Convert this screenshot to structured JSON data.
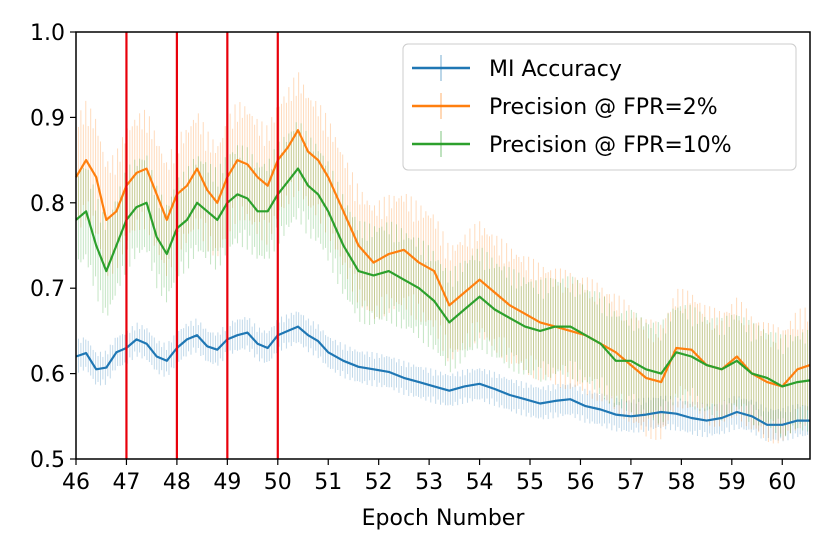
{
  "chart_data": {
    "type": "line",
    "xlabel": "Epoch Number",
    "ylabel": "",
    "xlim": [
      46,
      60.55
    ],
    "ylim": [
      0.5,
      1.0
    ],
    "xticks": [
      "46",
      "47",
      "48",
      "49",
      "50",
      "51",
      "52",
      "53",
      "54",
      "55",
      "56",
      "57",
      "58",
      "59",
      "60"
    ],
    "yticks": [
      "0.5",
      "0.6",
      "0.7",
      "0.8",
      "0.9",
      "1.0"
    ],
    "grid": false,
    "legend_position": "top-right",
    "vertical_markers": [
      47,
      48,
      49,
      50
    ],
    "vertical_marker_color": "#e8000b",
    "series": [
      {
        "name": "MI Accuracy",
        "color": "#1f77b4",
        "band": 0.02,
        "x": [
          46.0,
          46.2,
          46.4,
          46.6,
          46.8,
          47.0,
          47.2,
          47.4,
          47.6,
          47.8,
          48.0,
          48.2,
          48.4,
          48.6,
          48.8,
          49.0,
          49.2,
          49.4,
          49.6,
          49.8,
          50.0,
          50.2,
          50.4,
          50.6,
          50.8,
          51.0,
          51.3,
          51.6,
          51.9,
          52.2,
          52.5,
          52.8,
          53.1,
          53.4,
          53.7,
          54.0,
          54.3,
          54.6,
          54.9,
          55.2,
          55.5,
          55.8,
          56.1,
          56.4,
          56.7,
          57.0,
          57.3,
          57.6,
          57.9,
          58.2,
          58.5,
          58.8,
          59.1,
          59.4,
          59.7,
          60.0,
          60.3,
          60.55
        ],
        "y": [
          0.62,
          0.624,
          0.605,
          0.607,
          0.625,
          0.63,
          0.64,
          0.635,
          0.62,
          0.615,
          0.63,
          0.64,
          0.645,
          0.632,
          0.628,
          0.64,
          0.645,
          0.648,
          0.635,
          0.63,
          0.645,
          0.65,
          0.655,
          0.645,
          0.638,
          0.625,
          0.615,
          0.608,
          0.605,
          0.602,
          0.595,
          0.59,
          0.585,
          0.58,
          0.585,
          0.588,
          0.582,
          0.575,
          0.57,
          0.565,
          0.568,
          0.57,
          0.562,
          0.558,
          0.552,
          0.55,
          0.552,
          0.555,
          0.553,
          0.548,
          0.545,
          0.548,
          0.555,
          0.55,
          0.54,
          0.54,
          0.545,
          0.545
        ]
      },
      {
        "name": "Precision @ FPR=2%",
        "color": "#ff7f0e",
        "band": 0.07,
        "x": [
          46.0,
          46.2,
          46.4,
          46.6,
          46.8,
          47.0,
          47.2,
          47.4,
          47.6,
          47.8,
          48.0,
          48.2,
          48.4,
          48.6,
          48.8,
          49.0,
          49.2,
          49.4,
          49.6,
          49.8,
          50.0,
          50.2,
          50.4,
          50.6,
          50.8,
          51.0,
          51.3,
          51.6,
          51.9,
          52.2,
          52.5,
          52.8,
          53.1,
          53.4,
          53.7,
          54.0,
          54.3,
          54.6,
          54.9,
          55.2,
          55.5,
          55.8,
          56.1,
          56.4,
          56.7,
          57.0,
          57.3,
          57.6,
          57.9,
          58.2,
          58.5,
          58.8,
          59.1,
          59.4,
          59.7,
          60.0,
          60.3,
          60.55
        ],
        "y": [
          0.83,
          0.85,
          0.83,
          0.78,
          0.79,
          0.82,
          0.835,
          0.84,
          0.81,
          0.78,
          0.81,
          0.82,
          0.84,
          0.815,
          0.8,
          0.83,
          0.85,
          0.845,
          0.83,
          0.82,
          0.85,
          0.865,
          0.885,
          0.86,
          0.85,
          0.83,
          0.79,
          0.75,
          0.73,
          0.74,
          0.745,
          0.73,
          0.72,
          0.68,
          0.695,
          0.71,
          0.695,
          0.68,
          0.67,
          0.66,
          0.655,
          0.65,
          0.645,
          0.635,
          0.625,
          0.61,
          0.595,
          0.59,
          0.63,
          0.628,
          0.61,
          0.605,
          0.62,
          0.6,
          0.59,
          0.585,
          0.605,
          0.61
        ]
      },
      {
        "name": "Precision @ FPR=10%",
        "color": "#2ca02c",
        "band": 0.06,
        "x": [
          46.0,
          46.2,
          46.4,
          46.6,
          46.8,
          47.0,
          47.2,
          47.4,
          47.6,
          47.8,
          48.0,
          48.2,
          48.4,
          48.6,
          48.8,
          49.0,
          49.2,
          49.4,
          49.6,
          49.8,
          50.0,
          50.2,
          50.4,
          50.6,
          50.8,
          51.0,
          51.3,
          51.6,
          51.9,
          52.2,
          52.5,
          52.8,
          53.1,
          53.4,
          53.7,
          54.0,
          54.3,
          54.6,
          54.9,
          55.2,
          55.5,
          55.8,
          56.1,
          56.4,
          56.7,
          57.0,
          57.3,
          57.6,
          57.9,
          58.2,
          58.5,
          58.8,
          59.1,
          59.4,
          59.7,
          60.0,
          60.3,
          60.55
        ],
        "y": [
          0.78,
          0.79,
          0.75,
          0.72,
          0.75,
          0.78,
          0.795,
          0.8,
          0.76,
          0.74,
          0.77,
          0.78,
          0.8,
          0.79,
          0.78,
          0.8,
          0.81,
          0.805,
          0.79,
          0.79,
          0.81,
          0.825,
          0.84,
          0.82,
          0.81,
          0.79,
          0.75,
          0.72,
          0.715,
          0.72,
          0.71,
          0.7,
          0.685,
          0.66,
          0.675,
          0.69,
          0.675,
          0.665,
          0.655,
          0.65,
          0.655,
          0.655,
          0.645,
          0.635,
          0.615,
          0.615,
          0.605,
          0.6,
          0.625,
          0.62,
          0.61,
          0.605,
          0.615,
          0.6,
          0.595,
          0.585,
          0.59,
          0.592
        ]
      }
    ]
  }
}
